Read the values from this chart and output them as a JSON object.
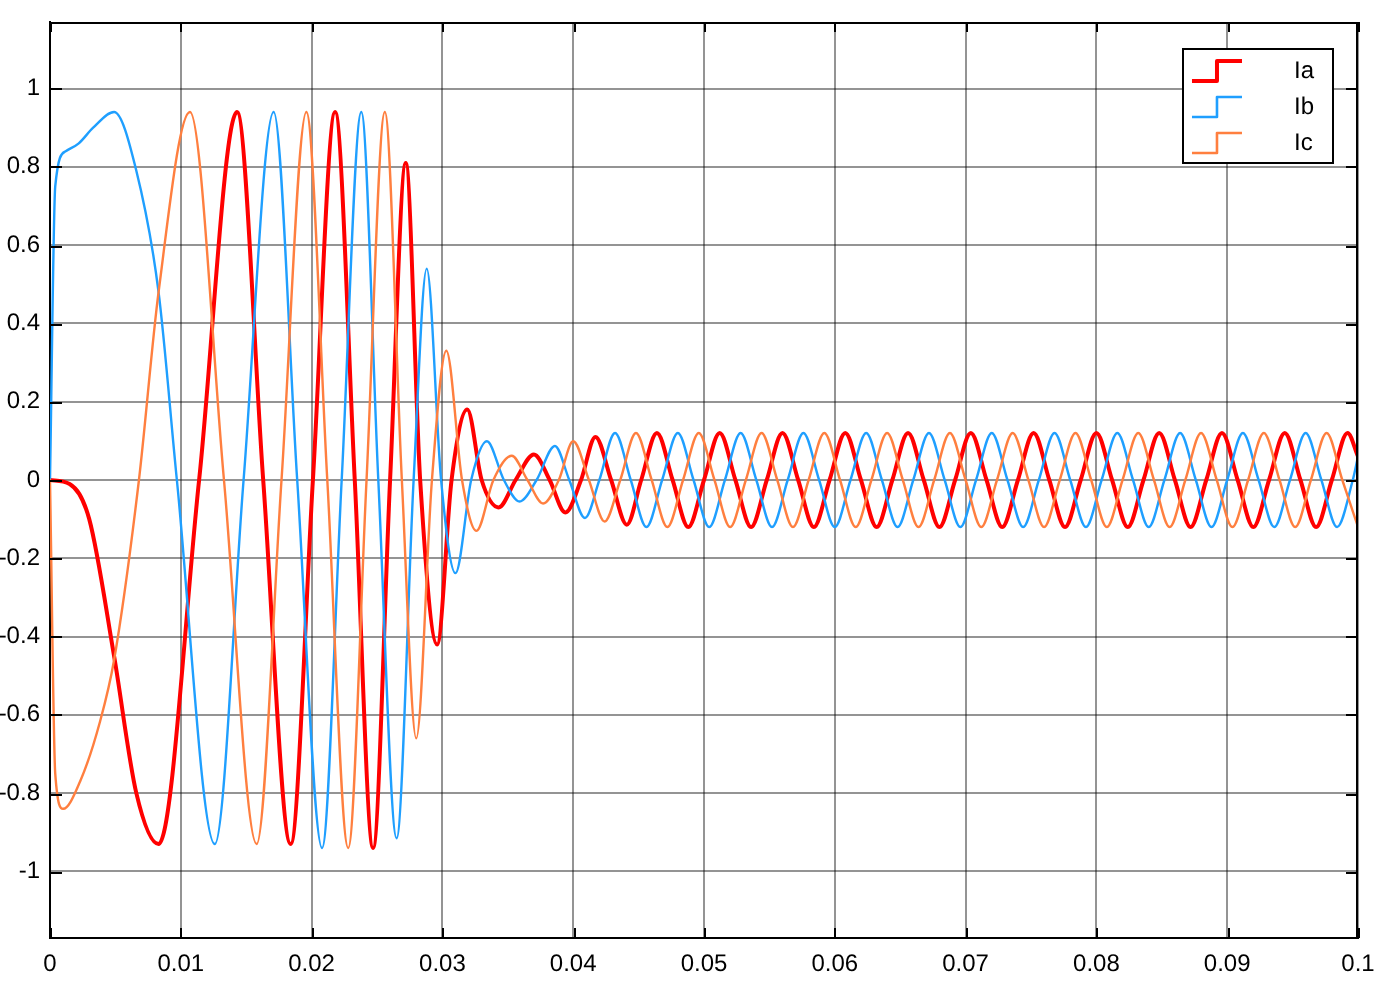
{
  "chart_data": {
    "type": "line",
    "xlim": [
      0,
      0.1
    ],
    "ylim": [
      -1.17,
      1.17
    ],
    "xticks": [
      0,
      0.01,
      0.02,
      0.03,
      0.04,
      0.05,
      0.06,
      0.07,
      0.08,
      0.09,
      0.1
    ],
    "yticks": [
      -1,
      -0.8,
      -0.6,
      -0.4,
      -0.2,
      0,
      0.2,
      0.4,
      0.6,
      0.8,
      1
    ],
    "grid": true,
    "legend": "top right",
    "marker": "none",
    "line_style": "solid",
    "series": [
      {
        "name": "Ia",
        "color": "#ff0000",
        "x": [
          0,
          0.0015,
          0.003,
          0.0049,
          0.0066,
          0.0083,
          0.0114,
          0.0143,
          0.0163,
          0.0184,
          0.0201,
          0.0218,
          0.0233,
          0.0247,
          0.026,
          0.0272,
          0.0283,
          0.0296,
          0.0307,
          0.0319,
          0.033,
          0.0343,
          0.0356,
          0.037,
          0.0382,
          0.0394,
          0.0406,
          0.0417,
          0.0429,
          0.0441,
          0.0452,
          0.0464,
          0.0476,
          0.0488,
          0.05,
          0.0512,
          0.0524,
          0.0536,
          0.0548,
          0.056,
          0.0572,
          0.0584,
          0.0596,
          0.0608,
          0.062,
          0.0632,
          0.0644,
          0.0656,
          0.0668,
          0.068,
          0.0692,
          0.0704,
          0.0716,
          0.0728,
          0.074,
          0.0752,
          0.0764,
          0.0776,
          0.0788,
          0.08,
          0.0812,
          0.0824,
          0.0836,
          0.0848,
          0.086,
          0.0872,
          0.0884,
          0.0896,
          0.0908,
          0.092,
          0.0932,
          0.0944,
          0.0956,
          0.0968,
          0.098,
          0.0992,
          0.1
        ],
        "values": [
          0,
          -0.01,
          -0.1,
          -0.45,
          -0.8,
          -0.93,
          0,
          0.94,
          0,
          -0.93,
          0,
          0.94,
          0,
          -0.94,
          0,
          0.81,
          0,
          -0.42,
          0,
          0.18,
          0,
          -0.07,
          0,
          0.065,
          0,
          -0.083,
          0,
          0.11,
          0,
          -0.114,
          0,
          0.12,
          0,
          -0.12,
          0,
          0.12,
          0,
          -0.12,
          0,
          0.12,
          0,
          -0.12,
          0,
          0.12,
          0,
          -0.12,
          0,
          0.12,
          0,
          -0.12,
          0,
          0.12,
          0,
          -0.12,
          0,
          0.12,
          0,
          -0.12,
          0,
          0.12,
          0,
          -0.12,
          0,
          0.12,
          0,
          -0.12,
          0,
          0.12,
          0,
          -0.12,
          0,
          0.12,
          0,
          -0.12,
          0,
          0.12,
          0.06
        ]
      },
      {
        "name": "Ib",
        "color": "#1f9fff",
        "x": [
          0,
          0.0004,
          0.0012,
          0.0022,
          0.0033,
          0.0049,
          0.0066,
          0.0083,
          0.0097,
          0.0126,
          0.0148,
          0.0171,
          0.0189,
          0.0208,
          0.0223,
          0.0238,
          0.0251,
          0.0265,
          0.0278,
          0.0288,
          0.0299,
          0.031,
          0.0322,
          0.0334,
          0.0347,
          0.0359,
          0.0372,
          0.0386,
          0.0397,
          0.0409,
          0.042,
          0.0432,
          0.0444,
          0.0456,
          0.0468,
          0.048,
          0.0492,
          0.0504,
          0.0516,
          0.0528,
          0.054,
          0.0552,
          0.0564,
          0.0576,
          0.0588,
          0.06,
          0.0612,
          0.0624,
          0.0636,
          0.0648,
          0.066,
          0.0672,
          0.0684,
          0.0696,
          0.0708,
          0.072,
          0.0732,
          0.0744,
          0.0756,
          0.0768,
          0.078,
          0.0792,
          0.0804,
          0.0816,
          0.0828,
          0.084,
          0.0852,
          0.0864,
          0.0876,
          0.0888,
          0.09,
          0.0912,
          0.0924,
          0.0936,
          0.0948,
          0.096,
          0.0972,
          0.0984,
          0.0996,
          0.1
        ],
        "values": [
          0,
          0.75,
          0.84,
          0.86,
          0.9,
          0.94,
          0.79,
          0.48,
          0,
          -0.93,
          0,
          0.94,
          0,
          -0.94,
          0,
          0.94,
          0,
          -0.915,
          0,
          0.54,
          0,
          -0.238,
          0,
          0.099,
          0,
          -0.055,
          0,
          0.087,
          0,
          -0.097,
          0,
          0.12,
          0,
          -0.12,
          0,
          0.12,
          0,
          -0.12,
          0,
          0.12,
          0,
          -0.12,
          0,
          0.12,
          0,
          -0.12,
          0,
          0.12,
          0,
          -0.12,
          0,
          0.12,
          0,
          -0.12,
          0,
          0.12,
          0,
          -0.12,
          0,
          0.12,
          0,
          -0.12,
          0,
          0.12,
          0,
          -0.12,
          0,
          0.12,
          0,
          -0.12,
          0,
          0.12,
          0,
          -0.12,
          0,
          0.12,
          0,
          -0.12,
          0,
          0.06
        ]
      },
      {
        "name": "Ic",
        "color": "#ff7f3f",
        "x": [
          0,
          0.0004,
          0.001,
          0.0023,
          0.0038,
          0.0049,
          0.0068,
          0.0083,
          0.0107,
          0.0133,
          0.0158,
          0.0177,
          0.0196,
          0.0212,
          0.0228,
          0.0242,
          0.0256,
          0.0269,
          0.028,
          0.0292,
          0.0303,
          0.0315,
          0.0326,
          0.0339,
          0.0353,
          0.0365,
          0.0377,
          0.0389,
          0.04,
          0.0412,
          0.0424,
          0.0436,
          0.0448,
          0.046,
          0.0472,
          0.0484,
          0.0496,
          0.0508,
          0.052,
          0.0532,
          0.0544,
          0.0556,
          0.0568,
          0.058,
          0.0592,
          0.0604,
          0.0616,
          0.0628,
          0.064,
          0.0652,
          0.0664,
          0.0676,
          0.0688,
          0.07,
          0.0712,
          0.0724,
          0.0736,
          0.0748,
          0.076,
          0.0772,
          0.0784,
          0.0796,
          0.0808,
          0.082,
          0.0832,
          0.0844,
          0.0856,
          0.0868,
          0.088,
          0.0892,
          0.0904,
          0.0916,
          0.0928,
          0.094,
          0.0952,
          0.0964,
          0.0976,
          0.0988,
          0.1
        ],
        "values": [
          0,
          -0.75,
          -0.84,
          -0.77,
          -0.62,
          -0.46,
          0,
          0.48,
          0.94,
          0,
          -0.93,
          0,
          0.94,
          0,
          -0.94,
          0,
          0.94,
          0,
          -0.66,
          0,
          0.33,
          0,
          -0.13,
          0,
          0.062,
          0,
          -0.06,
          0,
          0.099,
          0,
          -0.106,
          0,
          0.12,
          0,
          -0.12,
          0,
          0.12,
          0,
          -0.12,
          0,
          0.12,
          0,
          -0.12,
          0,
          0.12,
          0,
          -0.12,
          0,
          0.12,
          0,
          -0.12,
          0,
          0.12,
          0,
          -0.12,
          0,
          0.12,
          0,
          -0.12,
          0,
          0.12,
          0,
          -0.12,
          0,
          0.12,
          0,
          -0.12,
          0,
          0.12,
          0,
          -0.12,
          0,
          0.12,
          0,
          -0.12,
          0,
          0.12,
          0,
          -0.12
        ]
      }
    ]
  }
}
